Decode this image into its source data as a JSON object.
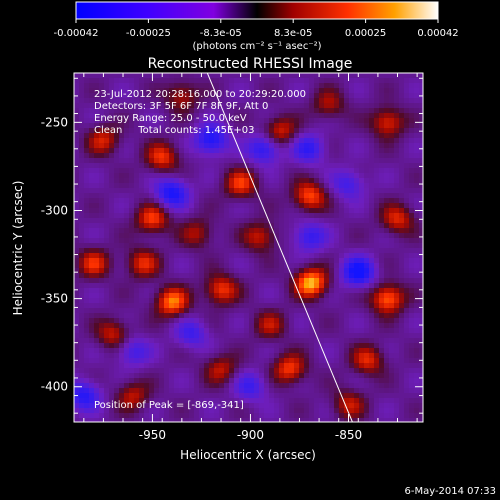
{
  "colorbar": {
    "tick_labels": [
      "-0.00042",
      "-0.00025",
      "-8.3e-05",
      "8.3e-05",
      "0.00025",
      "0.00042"
    ],
    "units_text": "(photons cm⁻² s⁻¹ asec⁻²)",
    "range": [
      -0.00042,
      0.00042
    ]
  },
  "chart_data": {
    "type": "heatmap",
    "title": "Reconstructed RHESSI Image",
    "xlabel": "Heliocentric X (arcsec)",
    "ylabel": "Heliocentric Y (arcsec)",
    "xlim": [
      -990,
      -812
    ],
    "ylim": [
      -420,
      -222
    ],
    "xticks": [
      -950,
      -900,
      -850
    ],
    "yticks": [
      -400,
      -350,
      -300,
      -250
    ],
    "xtick_labels": [
      "-950",
      "-900",
      "-850"
    ],
    "ytick_labels": [
      "-400",
      "-350",
      "-300",
      "-250"
    ],
    "info_lines": [
      "23-Jul-2012 20:28:16.000 to 20:29:20.000",
      "Detectors: 3F 5F 6F 7F 8F 9F, Att 0",
      "Energy Range: 25.0 - 50.0 keV",
      "Clean     Total counts: 1.45E+03"
    ],
    "peak_label": "Position of Peak = [-869,-341]",
    "peak": [
      -869,
      -341
    ],
    "limb_line": [
      [
        -922,
        -222
      ],
      [
        -848,
        -420
      ]
    ],
    "sources": [
      {
        "x": -869,
        "y": -341,
        "v": 1.0
      },
      {
        "x": -940,
        "y": -352,
        "v": 0.85
      },
      {
        "x": -870,
        "y": -292,
        "v": 0.75
      },
      {
        "x": -915,
        "y": -345,
        "v": 0.7
      },
      {
        "x": -950,
        "y": -305,
        "v": 0.7
      },
      {
        "x": -945,
        "y": -270,
        "v": 0.65
      },
      {
        "x": -905,
        "y": -285,
        "v": 0.65
      },
      {
        "x": -880,
        "y": -390,
        "v": 0.7
      },
      {
        "x": -895,
        "y": -315,
        "v": 0.55
      },
      {
        "x": -885,
        "y": -255,
        "v": 0.6
      },
      {
        "x": -830,
        "y": -350,
        "v": 0.85
      },
      {
        "x": -825,
        "y": -305,
        "v": 0.6
      },
      {
        "x": -840,
        "y": -385,
        "v": 0.6
      },
      {
        "x": -830,
        "y": -250,
        "v": 0.65
      },
      {
        "x": -980,
        "y": -330,
        "v": 0.6
      },
      {
        "x": -960,
        "y": -405,
        "v": 0.5
      },
      {
        "x": -915,
        "y": -390,
        "v": 0.5
      },
      {
        "x": -860,
        "y": -240,
        "v": 0.45
      },
      {
        "x": -935,
        "y": -235,
        "v": 0.5
      },
      {
        "x": -975,
        "y": -260,
        "v": 0.55
      },
      {
        "x": -970,
        "y": -370,
        "v": 0.55
      },
      {
        "x": -955,
        "y": -330,
        "v": 0.6
      },
      {
        "x": -927,
        "y": -313,
        "v": 0.45
      },
      {
        "x": -890,
        "y": -365,
        "v": 0.45
      },
      {
        "x": -850,
        "y": -410,
        "v": 0.5
      },
      {
        "x": -920,
        "y": -260,
        "v": -0.8
      },
      {
        "x": -940,
        "y": -290,
        "v": -0.8
      },
      {
        "x": -893,
        "y": -265,
        "v": -0.7
      },
      {
        "x": -845,
        "y": -335,
        "v": -0.9
      },
      {
        "x": -870,
        "y": -315,
        "v": -0.6
      },
      {
        "x": -960,
        "y": -380,
        "v": -0.5
      },
      {
        "x": -985,
        "y": -405,
        "v": -0.7
      },
      {
        "x": -870,
        "y": -265,
        "v": -0.6
      },
      {
        "x": -900,
        "y": -400,
        "v": -0.5
      },
      {
        "x": -930,
        "y": -370,
        "v": -0.5
      },
      {
        "x": -850,
        "y": -285,
        "v": -0.5
      }
    ]
  },
  "footer": {
    "date_text": "6-May-2014 07:33"
  }
}
